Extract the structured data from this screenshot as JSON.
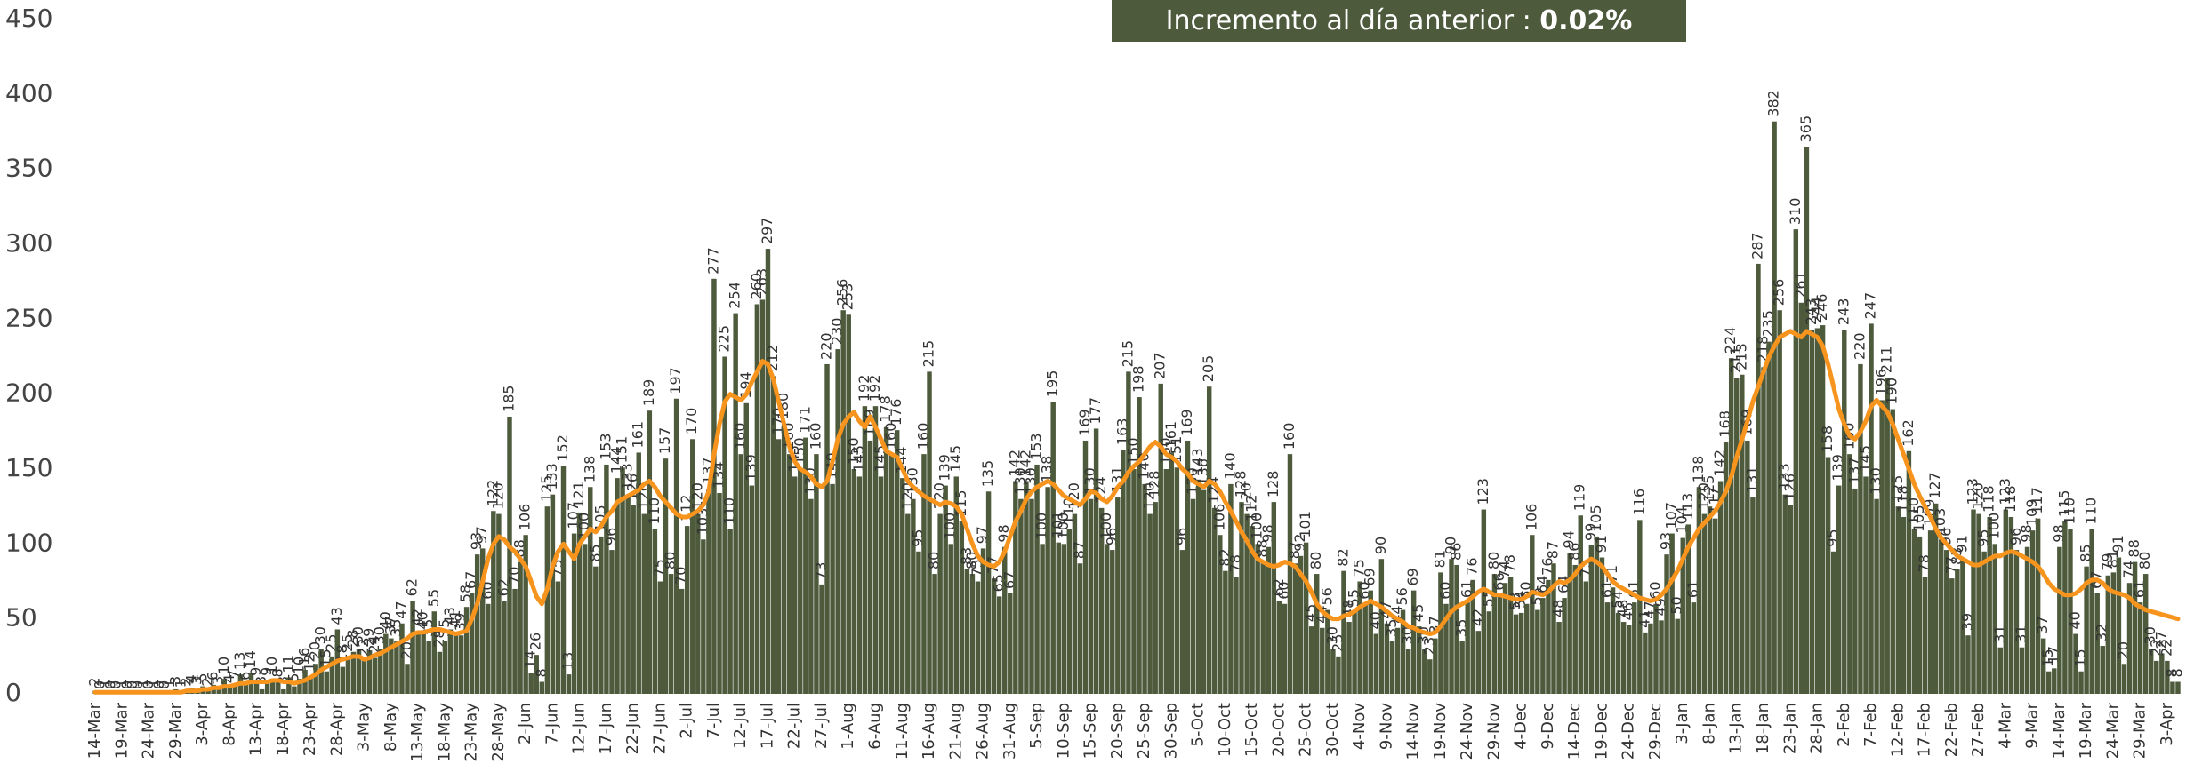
{
  "chart_data": {
    "type": "bar",
    "annotation": {
      "text": "Incremento al día anterior :",
      "value": "0.02%"
    },
    "categories": [
      "14-Mar",
      null,
      null,
      null,
      null,
      "19-Mar",
      null,
      null,
      null,
      null,
      "24-Mar",
      null,
      null,
      null,
      null,
      "29-Mar",
      null,
      null,
      null,
      null,
      "3-Apr",
      null,
      null,
      null,
      null,
      "8-Apr",
      null,
      null,
      null,
      null,
      "13-Apr",
      null,
      null,
      null,
      null,
      "18-Apr",
      null,
      null,
      null,
      null,
      "23-Apr",
      null,
      null,
      null,
      null,
      "28-Apr",
      null,
      null,
      null,
      null,
      "3-May",
      null,
      null,
      null,
      null,
      "8-May",
      null,
      null,
      null,
      null,
      "13-May",
      null,
      null,
      null,
      null,
      "18-May",
      null,
      null,
      null,
      null,
      "23-May",
      null,
      null,
      null,
      null,
      "28-May",
      null,
      null,
      null,
      null,
      "2-Jun",
      null,
      null,
      null,
      null,
      "7-Jun",
      null,
      null,
      null,
      null,
      "12-Jun",
      null,
      null,
      null,
      null,
      "17-Jun",
      null,
      null,
      null,
      null,
      "22-Jun",
      null,
      null,
      null,
      null,
      "27-Jun",
      null,
      null,
      null,
      null,
      "2-Jul",
      null,
      null,
      null,
      null,
      "7-Jul",
      null,
      null,
      null,
      null,
      "12-Jul",
      null,
      null,
      null,
      null,
      "17-Jul",
      null,
      null,
      null,
      null,
      "22-Jul",
      null,
      null,
      null,
      null,
      "27-Jul",
      null,
      null,
      null,
      null,
      "1-Aug",
      null,
      null,
      null,
      null,
      "6-Aug",
      null,
      null,
      null,
      null,
      "11-Aug",
      null,
      null,
      null,
      null,
      "16-Aug",
      null,
      null,
      null,
      null,
      "21-Aug",
      null,
      null,
      null,
      null,
      "26-Aug",
      null,
      null,
      null,
      null,
      "31-Aug",
      null,
      null,
      null,
      null,
      "5-Sep",
      null,
      null,
      null,
      null,
      "10-Sep",
      null,
      null,
      null,
      null,
      "15-Sep",
      null,
      null,
      null,
      null,
      "20-Sep",
      null,
      null,
      null,
      null,
      "25-Sep",
      null,
      null,
      null,
      null,
      "30-Sep",
      null,
      null,
      null,
      null,
      "5-Oct",
      null,
      null,
      null,
      null,
      "10-Oct",
      null,
      null,
      null,
      null,
      "15-Oct",
      null,
      null,
      null,
      null,
      "20-Oct",
      null,
      null,
      null,
      null,
      "25-Oct",
      null,
      null,
      null,
      null,
      "30-Oct",
      null,
      null,
      null,
      null,
      "4-Nov",
      null,
      null,
      null,
      null,
      "9-Nov",
      null,
      null,
      null,
      null,
      "14-Nov",
      null,
      null,
      null,
      null,
      "19-Nov",
      null,
      null,
      null,
      null,
      "24-Nov",
      null,
      null,
      null,
      null,
      "29-Nov",
      null,
      null,
      null,
      null,
      "4-Dec",
      null,
      null,
      null,
      null,
      "9-Dec",
      null,
      null,
      null,
      null,
      "14-Dec",
      null,
      null,
      null,
      null,
      "19-Dec",
      null,
      null,
      null,
      null,
      "24-Dec",
      null,
      null,
      null,
      null,
      "29-Dec",
      null,
      null,
      null,
      null,
      "3-Jan",
      null,
      null,
      null,
      null,
      "8-Jan",
      null,
      null,
      null,
      null,
      "13-Jan",
      null,
      null,
      null,
      null,
      "18-Jan",
      null,
      null,
      null,
      null,
      "23-Jan",
      null,
      null,
      null,
      null,
      "28-Jan",
      null,
      null,
      null,
      null,
      "2-Feb",
      null,
      null,
      null,
      null,
      "7-Feb",
      null,
      null,
      null,
      null,
      "12-Feb",
      null,
      null,
      null,
      null,
      "17-Feb",
      null,
      null,
      null,
      null,
      "22-Feb",
      null,
      null,
      null,
      null,
      "27-Feb",
      null,
      null,
      null,
      null,
      "4-Mar",
      null,
      null,
      null,
      null,
      "9-Mar",
      null,
      null,
      null,
      null,
      "14-Mar",
      null,
      null,
      null,
      null,
      "19-Mar",
      null,
      null,
      null,
      null,
      "24-Mar",
      null,
      null,
      null,
      null,
      "29-Mar",
      null,
      null,
      null,
      null,
      "3-Apr",
      null,
      null
    ],
    "series": [
      {
        "type": "bar",
        "color": "#4d5a3c",
        "values": [
          2,
          0,
          1,
          0,
          0,
          1,
          0,
          0,
          0,
          1,
          0,
          1,
          0,
          0,
          1,
          3,
          1,
          2,
          4,
          3,
          5,
          2,
          6,
          3,
          10,
          4,
          7,
          13,
          6,
          14,
          9,
          3,
          9,
          10,
          8,
          3,
          11,
          5,
          10,
          16,
          12,
          20,
          30,
          15,
          25,
          43,
          18,
          25,
          28,
          30,
          22,
          29,
          24,
          30,
          40,
          37,
          35,
          47,
          20,
          62,
          42,
          40,
          35,
          55,
          28,
          35,
          43,
          41,
          39,
          58,
          67,
          93,
          97,
          60,
          122,
          120,
          62,
          185,
          70,
          88,
          106,
          14,
          26,
          8,
          125,
          133,
          75,
          152,
          13,
          107,
          121,
          100,
          138,
          85,
          105,
          153,
          96,
          144,
          151,
          133,
          126,
          161,
          120,
          189,
          110,
          75,
          157,
          80,
          197,
          70,
          112,
          170,
          120,
          103,
          137,
          277,
          134,
          225,
          110,
          254,
          160,
          194,
          139,
          260,
          263,
          297,
          212,
          170,
          180,
          160,
          145,
          150,
          171,
          130,
          160,
          73,
          220,
          140,
          230,
          256,
          253,
          150,
          145,
          192,
          169,
          192,
          145,
          178,
          160,
          176,
          144,
          120,
          130,
          95,
          160,
          215,
          80,
          120,
          139,
          100,
          145,
          115,
          83,
          80,
          75,
          97,
          135,
          77,
          65,
          98,
          67,
          142,
          130,
          142,
          130,
          153,
          100,
          138,
          195,
          101,
          100,
          110,
          120,
          87,
          169,
          130,
          177,
          124,
          100,
          96,
          131,
          163,
          215,
          150,
          198,
          140,
          120,
          128,
          207,
          150,
          161,
          151,
          96,
          169,
          130,
          143,
          136,
          205,
          124,
          106,
          82,
          140,
          78,
          128,
          120,
          112,
          100,
          88,
          98,
          128,
          62,
          60,
          160,
          87,
          92,
          101,
          45,
          80,
          44,
          56,
          30,
          25,
          82,
          48,
          55,
          75,
          60,
          69,
          40,
          90,
          47,
          35,
          44,
          56,
          30,
          69,
          45,
          30,
          23,
          37,
          81,
          60,
          90,
          86,
          35,
          61,
          76,
          42,
          123,
          55,
          80,
          66,
          74,
          78,
          53,
          54,
          60,
          106,
          56,
          64,
          76,
          87,
          48,
          64,
          94,
          86,
          119,
          75,
          99,
          105,
          91,
          61,
          71,
          54,
          48,
          46,
          61,
          116,
          41,
          47,
          60,
          49,
          93,
          107,
          50,
          104,
          113,
          61,
          138,
          120,
          125,
          117,
          142,
          168,
          224,
          211,
          213,
          169,
          131,
          287,
          218,
          235,
          382,
          256,
          133,
          126,
          310,
          261,
          365,
          243,
          244,
          246,
          158,
          95,
          139,
          243,
          160,
          137,
          220,
          145,
          247,
          130,
          196,
          211,
          190,
          125,
          118,
          162,
          110,
          105,
          78,
          109,
          127,
          103,
          96,
          77,
          83,
          91,
          39,
          123,
          120,
          95,
          118,
          100,
          31,
          123,
          118,
          96,
          31,
          98,
          109,
          117,
          37,
          15,
          17,
          98,
          115,
          110,
          40,
          15,
          85,
          110,
          67,
          32,
          79,
          81,
          91,
          20,
          74,
          88,
          61,
          80,
          30,
          22,
          27,
          22,
          8,
          8
        ]
      },
      {
        "type": "line",
        "color": "#f7941d",
        "values": [
          1,
          1,
          1,
          1,
          1,
          1,
          1,
          1,
          1,
          1,
          1,
          1,
          1,
          1,
          1,
          1,
          1,
          2,
          2,
          2,
          3,
          3,
          4,
          4,
          5,
          5,
          6,
          7,
          7,
          8,
          8,
          8,
          8,
          9,
          9,
          8,
          8,
          7,
          8,
          9,
          11,
          13,
          16,
          18,
          20,
          22,
          23,
          24,
          25,
          25,
          23,
          24,
          26,
          27,
          29,
          31,
          33,
          35,
          37,
          40,
          41,
          41,
          42,
          43,
          43,
          42,
          41,
          40,
          41,
          42,
          50,
          60,
          75,
          90,
          100,
          105,
          103,
          98,
          95,
          90,
          85,
          75,
          65,
          60,
          70,
          85,
          95,
          100,
          95,
          90,
          100,
          105,
          110,
          108,
          112,
          118,
          122,
          128,
          130,
          132,
          134,
          136,
          140,
          142,
          138,
          132,
          128,
          124,
          120,
          118,
          118,
          120,
          122,
          126,
          135,
          160,
          180,
          195,
          200,
          198,
          196,
          200,
          208,
          215,
          222,
          220,
          210,
          195,
          180,
          165,
          155,
          150,
          148,
          145,
          140,
          138,
          142,
          155,
          170,
          180,
          185,
          188,
          182,
          178,
          185,
          178,
          170,
          162,
          160,
          158,
          150,
          142,
          138,
          135,
          132,
          130,
          128,
          126,
          128,
          127,
          125,
          120,
          110,
          100,
          92,
          88,
          86,
          85,
          88,
          95,
          105,
          115,
          122,
          130,
          135,
          138,
          140,
          142,
          140,
          136,
          132,
          130,
          128,
          126,
          130,
          135,
          134,
          130,
          128,
          132,
          138,
          142,
          148,
          152,
          155,
          160,
          165,
          168,
          165,
          160,
          158,
          155,
          150,
          147,
          142,
          140,
          138,
          142,
          140,
          135,
          128,
          122,
          115,
          108,
          102,
          95,
          90,
          88,
          86,
          85,
          86,
          88,
          87,
          85,
          80,
          75,
          68,
          60,
          55,
          52,
          50,
          50,
          52,
          53,
          55,
          58,
          60,
          62,
          60,
          58,
          55,
          52,
          50,
          48,
          45,
          44,
          42,
          41,
          40,
          41,
          45,
          50,
          55,
          58,
          60,
          62,
          65,
          68,
          70,
          68,
          66,
          66,
          65,
          64,
          63,
          63,
          65,
          68,
          67,
          66,
          68,
          72,
          75,
          74,
          76,
          80,
          85,
          88,
          90,
          88,
          85,
          80,
          75,
          72,
          70,
          68,
          66,
          64,
          63,
          62,
          63,
          66,
          70,
          76,
          82,
          90,
          98,
          104,
          110,
          114,
          118,
          122,
          128,
          135,
          145,
          158,
          170,
          182,
          195,
          205,
          215,
          225,
          232,
          238,
          240,
          242,
          240,
          238,
          242,
          240,
          238,
          232,
          220,
          205,
          190,
          180,
          172,
          170,
          175,
          182,
          192,
          196,
          192,
          188,
          180,
          170,
          160,
          150,
          140,
          132,
          125,
          118,
          110,
          104,
          100,
          96,
          92,
          90,
          88,
          86,
          86,
          88,
          90,
          92,
          92,
          94,
          95,
          94,
          92,
          90,
          88,
          85,
          80,
          74,
          70,
          68,
          66,
          66,
          67,
          70,
          74,
          76,
          76,
          74,
          70,
          68,
          67,
          66,
          64,
          60,
          58,
          56,
          55,
          54,
          53,
          52,
          51,
          50
        ]
      }
    ],
    "ylim": [
      0,
      450
    ],
    "yticks": [
      0,
      50,
      100,
      150,
      200,
      250,
      300,
      350,
      400,
      450
    ],
    "grid": false
  }
}
